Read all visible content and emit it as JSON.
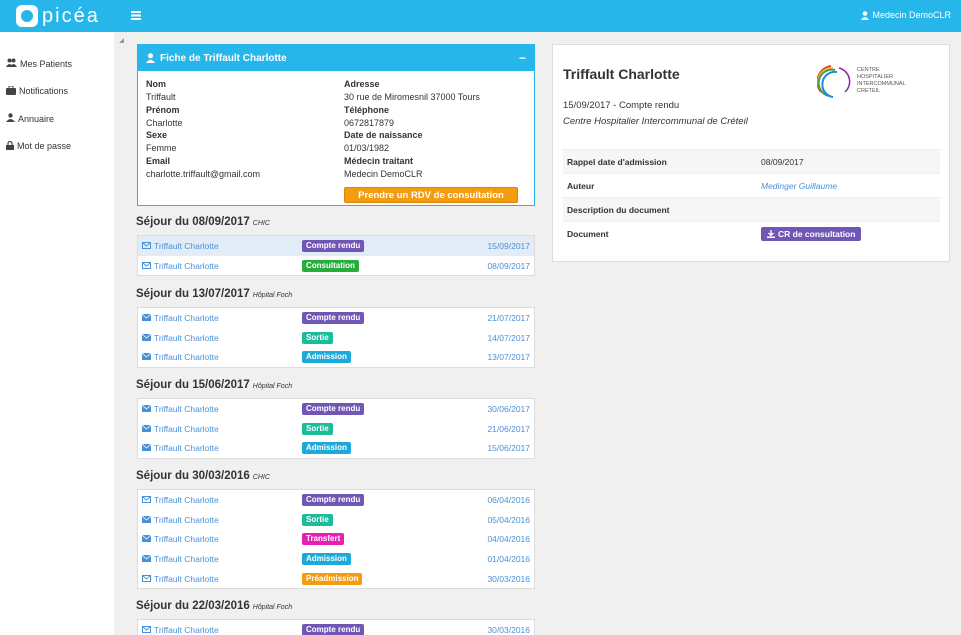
{
  "app": {
    "logo_text": "picéa",
    "user": "Medecin DemoCLR"
  },
  "sidebar": {
    "items": [
      {
        "label": "Mes Patients",
        "icon": "users-icon"
      },
      {
        "label": "Notifications",
        "icon": "briefcase-icon"
      },
      {
        "label": "Annuaire",
        "icon": "user-md-icon"
      },
      {
        "label": "Mot de passe",
        "icon": "lock-icon"
      }
    ]
  },
  "fiche": {
    "title": "Fiche de Triffault Charlotte",
    "nom_label": "Nom",
    "nom": "Triffault",
    "prenom_label": "Prénom",
    "prenom": "Charlotte",
    "sexe_label": "Sexe",
    "sexe": "Femme",
    "email_label": "Email",
    "email": "charlotte.triffault@gmail.com",
    "adresse_label": "Adresse",
    "adresse": "30 rue de Miromesnil 37000 Tours",
    "tel_label": "Téléphone",
    "tel": "0672817879",
    "dob_label": "Date de naissance",
    "dob": "01/03/1982",
    "medecin_label": "Médecin traitant",
    "medecin": "Medecin DemoCLR",
    "rdv_button": "Prendre un RDV de consultation"
  },
  "colors": {
    "compte_rendu": "#7056b5",
    "consultation": "#27ae3a",
    "sortie": "#1abc9c",
    "admission": "#1eaad8",
    "transfert": "#e91eb4",
    "preadmission": "#f39c12"
  },
  "sejours": [
    {
      "title": "Séjour du 08/09/2017",
      "site": "CHIC",
      "rows": [
        {
          "name": "Triffault Charlotte",
          "type": "Compte rendu",
          "kind": "compte_rendu",
          "date": "15/09/2017",
          "read": true,
          "selected": true
        },
        {
          "name": "Triffault Charlotte",
          "type": "Consultation",
          "kind": "consultation",
          "date": "08/09/2017",
          "read": true
        }
      ]
    },
    {
      "title": "Séjour du 13/07/2017",
      "site": "Hôpital Foch",
      "rows": [
        {
          "name": "Triffault Charlotte",
          "type": "Compte rendu",
          "kind": "compte_rendu",
          "date": "21/07/2017"
        },
        {
          "name": "Triffault Charlotte",
          "type": "Sortie",
          "kind": "sortie",
          "date": "14/07/2017"
        },
        {
          "name": "Triffault Charlotte",
          "type": "Admission",
          "kind": "admission",
          "date": "13/07/2017"
        }
      ]
    },
    {
      "title": "Séjour du 15/06/2017",
      "site": "Hôpital Foch",
      "rows": [
        {
          "name": "Triffault Charlotte",
          "type": "Compte rendu",
          "kind": "compte_rendu",
          "date": "30/06/2017"
        },
        {
          "name": "Triffault Charlotte",
          "type": "Sortie",
          "kind": "sortie",
          "date": "21/06/2017"
        },
        {
          "name": "Triffault Charlotte",
          "type": "Admission",
          "kind": "admission",
          "date": "15/06/2017"
        }
      ]
    },
    {
      "title": "Séjour du 30/03/2016",
      "site": "CHIC",
      "rows": [
        {
          "name": "Triffault Charlotte",
          "type": "Compte rendu",
          "kind": "compte_rendu",
          "date": "06/04/2016",
          "read": true
        },
        {
          "name": "Triffault Charlotte",
          "type": "Sortie",
          "kind": "sortie",
          "date": "05/04/2016"
        },
        {
          "name": "Triffault Charlotte",
          "type": "Transfert",
          "kind": "transfert",
          "date": "04/04/2016"
        },
        {
          "name": "Triffault Charlotte",
          "type": "Admission",
          "kind": "admission",
          "date": "01/04/2016"
        },
        {
          "name": "Triffault Charlotte",
          "type": "Préadmission",
          "kind": "preadmission",
          "date": "30/03/2016",
          "read": true
        }
      ]
    },
    {
      "title": "Séjour du 22/03/2016",
      "site": "Hôpital Foch",
      "rows": [
        {
          "name": "Triffault Charlotte",
          "type": "Compte rendu",
          "kind": "compte_rendu",
          "date": "30/03/2016",
          "read": true
        }
      ]
    }
  ],
  "detail": {
    "patient": "Triffault Charlotte",
    "subtitle": "15/09/2017 - Compte rendu",
    "hospital": "Centre Hospitalier Intercommunal de Créteil",
    "logo_lines": [
      "CENTRE",
      "HOSPITALIER",
      "INTERCOMMUNAL",
      "CRETEIL"
    ],
    "rows": [
      {
        "key": "Rappel date d'admission",
        "value": "08/09/2017"
      },
      {
        "key": "Auteur",
        "value": "Medinger Guillaume",
        "link": true
      },
      {
        "key": "Description du document",
        "value": ""
      },
      {
        "key": "Document",
        "button": "CR de consultation"
      }
    ]
  }
}
